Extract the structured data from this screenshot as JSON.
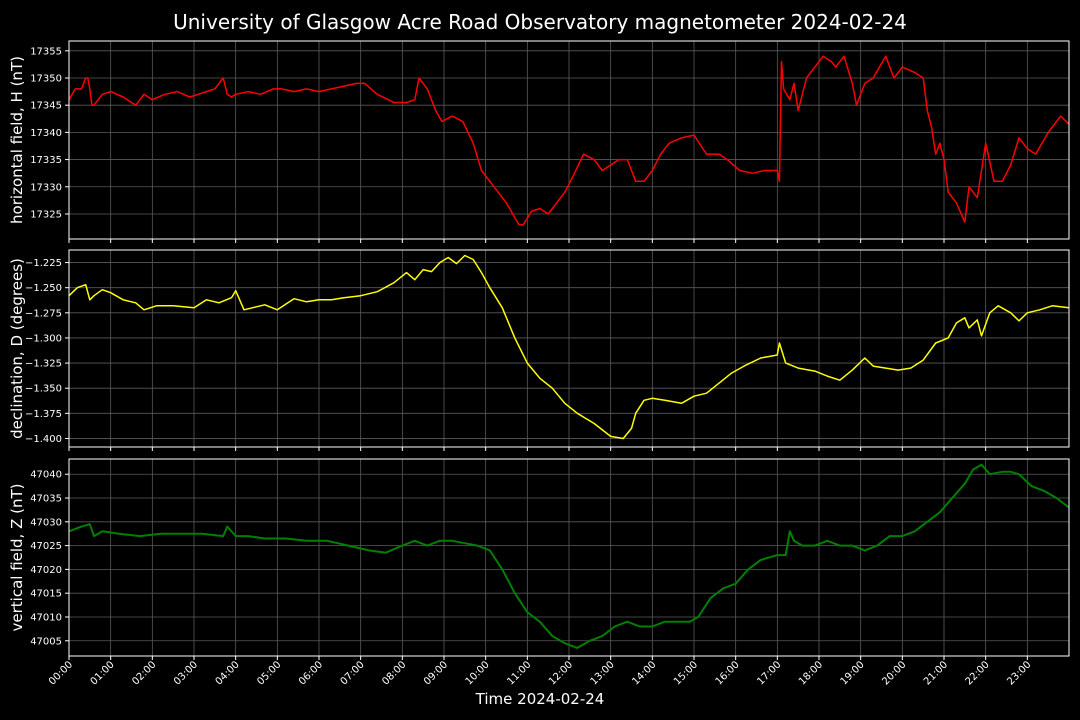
{
  "chart_data": {
    "title": "University of Glasgow Acre Road Observatory magnetometer 2024-02-24",
    "xlabel": "Time 2024-02-24",
    "type": "line",
    "grid": true,
    "x_ticks": [
      "00:00",
      "01:00",
      "02:00",
      "03:00",
      "04:00",
      "05:00",
      "06:00",
      "07:00",
      "08:00",
      "09:00",
      "10:00",
      "11:00",
      "12:00",
      "13:00",
      "14:00",
      "15:00",
      "16:00",
      "17:00",
      "18:00",
      "19:00",
      "20:00",
      "21:00",
      "22:00",
      "23:00"
    ],
    "x_range_hours": [
      0,
      24
    ],
    "panels": [
      {
        "ylabel": "horizontal field, H (nT)",
        "color": "#ff0000",
        "ylim": [
          17320.4,
          17356.8
        ],
        "yticks": [
          17325,
          17330,
          17335,
          17340,
          17345,
          17350,
          17355
        ],
        "ytick_labels": [
          "17325",
          "17330",
          "17335",
          "17340",
          "17345",
          "17350",
          "17355"
        ],
        "x": [
          0,
          0.15,
          0.3,
          0.4,
          0.45,
          0.5,
          0.55,
          0.6,
          0.8,
          1.0,
          1.3,
          1.6,
          1.8,
          2.0,
          2.3,
          2.6,
          2.9,
          3.1,
          3.3,
          3.5,
          3.7,
          3.8,
          3.9,
          4.0,
          4.3,
          4.6,
          4.9,
          5.1,
          5.4,
          5.7,
          6.0,
          6.3,
          6.6,
          6.9,
          7.1,
          7.4,
          7.8,
          8.1,
          8.3,
          8.4,
          8.6,
          8.8,
          8.95,
          9.2,
          9.45,
          9.7,
          9.9,
          10.2,
          10.5,
          10.8,
          10.9,
          11.1,
          11.3,
          11.5,
          11.7,
          11.9,
          12.1,
          12.35,
          12.6,
          12.8,
          13.0,
          13.2,
          13.4,
          13.6,
          13.8,
          14.0,
          14.2,
          14.4,
          14.7,
          15.0,
          15.3,
          15.6,
          15.8,
          16.1,
          16.4,
          16.7,
          17.0,
          17.05,
          17.1,
          17.15,
          17.3,
          17.4,
          17.5,
          17.7,
          17.9,
          18.1,
          18.3,
          18.4,
          18.6,
          18.8,
          18.9,
          19.1,
          19.3,
          19.6,
          19.8,
          20.0,
          20.3,
          20.5,
          20.6,
          20.7,
          20.8,
          20.9,
          21.0,
          21.1,
          21.3,
          21.5,
          21.6,
          21.8,
          21.9,
          22.0,
          22.2,
          22.4,
          22.6,
          22.8,
          23.0,
          23.2,
          23.5,
          23.8,
          24.0
        ],
        "y": [
          17346,
          17348,
          17348,
          17350,
          17350,
          17348,
          17345,
          17345,
          17347,
          17347.5,
          17346.5,
          17345,
          17347,
          17346,
          17347,
          17347.5,
          17346.5,
          17347,
          17347.5,
          17348,
          17350,
          17347,
          17346.5,
          17347,
          17347.5,
          17347,
          17348,
          17348,
          17347.5,
          17348,
          17347.5,
          17348,
          17348.5,
          17349,
          17349,
          17347,
          17345.5,
          17345.5,
          17346,
          17350,
          17348,
          17344,
          17342,
          17343,
          17342,
          17338,
          17333,
          17330,
          17327,
          17323,
          17323,
          17325.5,
          17326,
          17325,
          17327,
          17329,
          17332,
          17336,
          17335,
          17333,
          17334,
          17335,
          17335,
          17331,
          17331,
          17333,
          17336,
          17338,
          17339,
          17339.5,
          17336,
          17336,
          17335,
          17333,
          17332.5,
          17333,
          17333,
          17331,
          17353,
          17348,
          17346,
          17349,
          17344,
          17350,
          17352,
          17354,
          17353,
          17352,
          17354,
          17349,
          17345,
          17349,
          17350,
          17354,
          17350,
          17352,
          17351,
          17350,
          17344,
          17341,
          17336,
          17338,
          17335,
          17329,
          17327,
          17323.5,
          17330,
          17328,
          17333,
          17338,
          17331,
          17331,
          17334,
          17339,
          17337,
          17336,
          17340,
          17343,
          17341.5
        ]
      },
      {
        "ylabel": "declination, D (degrees)",
        "color": "#ffff00",
        "ylim": [
          -1.4085,
          -1.2125
        ],
        "yticks": [
          -1.4,
          -1.375,
          -1.35,
          -1.325,
          -1.3,
          -1.275,
          -1.25,
          -1.225
        ],
        "ytick_labels": [
          "−1.400",
          "−1.375",
          "−1.350",
          "−1.325",
          "−1.300",
          "−1.275",
          "−1.250",
          "−1.225"
        ],
        "x": [
          0,
          0.2,
          0.4,
          0.5,
          0.6,
          0.8,
          1.0,
          1.3,
          1.6,
          1.8,
          2.1,
          2.5,
          3.0,
          3.3,
          3.6,
          3.9,
          4.0,
          4.2,
          4.4,
          4.7,
          5.0,
          5.4,
          5.7,
          6.0,
          6.3,
          6.6,
          7.0,
          7.4,
          7.8,
          8.1,
          8.3,
          8.5,
          8.7,
          8.9,
          9.1,
          9.3,
          9.5,
          9.7,
          9.9,
          10.1,
          10.4,
          10.7,
          11.0,
          11.3,
          11.6,
          11.9,
          12.2,
          12.6,
          13.0,
          13.3,
          13.5,
          13.6,
          13.8,
          14.0,
          14.3,
          14.7,
          15.0,
          15.3,
          15.6,
          15.9,
          16.2,
          16.6,
          17.0,
          17.05,
          17.2,
          17.5,
          17.9,
          18.2,
          18.5,
          18.8,
          19.1,
          19.3,
          19.6,
          19.9,
          20.2,
          20.5,
          20.8,
          21.1,
          21.3,
          21.5,
          21.6,
          21.8,
          21.9,
          22.1,
          22.3,
          22.6,
          22.8,
          23.0,
          23.3,
          23.6,
          24.0
        ],
        "y": [
          -1.258,
          -1.25,
          -1.247,
          -1.262,
          -1.258,
          -1.252,
          -1.255,
          -1.262,
          -1.265,
          -1.272,
          -1.268,
          -1.268,
          -1.27,
          -1.262,
          -1.265,
          -1.26,
          -1.253,
          -1.272,
          -1.27,
          -1.267,
          -1.272,
          -1.261,
          -1.264,
          -1.262,
          -1.262,
          -1.26,
          -1.258,
          -1.254,
          -1.245,
          -1.235,
          -1.242,
          -1.232,
          -1.234,
          -1.225,
          -1.22,
          -1.226,
          -1.218,
          -1.222,
          -1.235,
          -1.25,
          -1.27,
          -1.3,
          -1.325,
          -1.34,
          -1.35,
          -1.365,
          -1.375,
          -1.385,
          -1.398,
          -1.4,
          -1.39,
          -1.375,
          -1.362,
          -1.36,
          -1.362,
          -1.365,
          -1.358,
          -1.355,
          -1.345,
          -1.335,
          -1.328,
          -1.32,
          -1.317,
          -1.305,
          -1.325,
          -1.33,
          -1.333,
          -1.338,
          -1.342,
          -1.332,
          -1.32,
          -1.328,
          -1.33,
          -1.332,
          -1.33,
          -1.322,
          -1.305,
          -1.3,
          -1.285,
          -1.28,
          -1.29,
          -1.282,
          -1.298,
          -1.275,
          -1.268,
          -1.275,
          -1.283,
          -1.275,
          -1.272,
          -1.268,
          -1.27
        ]
      },
      {
        "ylabel": "vertical field, Z (nT)",
        "color": "#008000",
        "ylim": [
          47001.8,
          47043.2
        ],
        "yticks": [
          47005,
          47010,
          47015,
          47020,
          47025,
          47030,
          47035,
          47040
        ],
        "ytick_labels": [
          "47005",
          "47010",
          "47015",
          "47020",
          "47025",
          "47030",
          "47035",
          "47040"
        ],
        "x": [
          0,
          0.3,
          0.5,
          0.6,
          0.8,
          1.2,
          1.7,
          2.2,
          2.7,
          3.2,
          3.7,
          3.8,
          4.0,
          4.3,
          4.7,
          5.2,
          5.7,
          6.2,
          6.7,
          7.2,
          7.6,
          8.0,
          8.3,
          8.6,
          8.9,
          9.2,
          9.5,
          9.8,
          10.1,
          10.4,
          10.7,
          11.0,
          11.3,
          11.6,
          11.9,
          12.2,
          12.5,
          12.8,
          13.1,
          13.4,
          13.7,
          14.0,
          14.3,
          14.6,
          14.9,
          15.1,
          15.4,
          15.7,
          16.0,
          16.3,
          16.6,
          17.0,
          17.2,
          17.3,
          17.4,
          17.6,
          17.9,
          18.2,
          18.5,
          18.8,
          19.1,
          19.4,
          19.7,
          20.0,
          20.3,
          20.6,
          20.9,
          21.2,
          21.5,
          21.7,
          21.9,
          22.1,
          22.4,
          22.6,
          22.8,
          23.1,
          23.4,
          23.7,
          24.0
        ],
        "y": [
          47028,
          47029,
          47029.5,
          47027,
          47028,
          47027.5,
          47027,
          47027.5,
          47027.5,
          47027.5,
          47027,
          47029,
          47027,
          47027,
          47026.5,
          47026.5,
          47026,
          47026,
          47025,
          47024,
          47023.5,
          47025,
          47026,
          47025,
          47026,
          47026,
          47025.5,
          47025,
          47024,
          47020,
          47015,
          47011,
          47009,
          47006,
          47004.5,
          47003.5,
          47005,
          47006,
          47008,
          47009,
          47008,
          47008,
          47009,
          47009,
          47009,
          47010,
          47014,
          47016,
          47017,
          47020,
          47022,
          47023,
          47023,
          47028,
          47026,
          47025,
          47025,
          47026,
          47025,
          47025,
          47024,
          47025,
          47027,
          47027,
          47028,
          47030,
          47032,
          47035,
          47038,
          47041,
          47042,
          47040,
          47040.5,
          47040.5,
          47040,
          47037.5,
          47036.5,
          47035,
          47033
        ]
      }
    ]
  }
}
